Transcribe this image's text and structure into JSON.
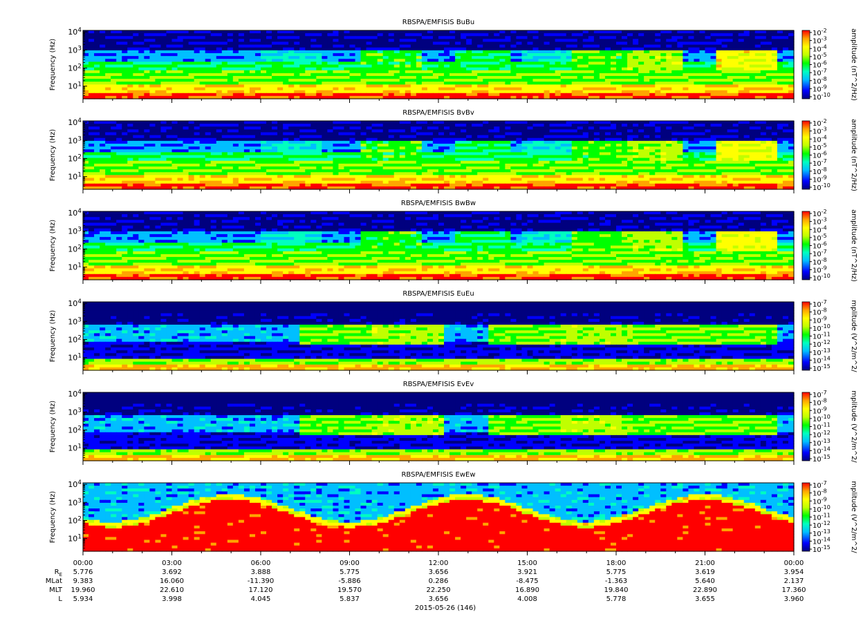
{
  "chart_data": {
    "type": "heatmap",
    "panels": [
      {
        "title": "RBSPA/EMFISIS  BuBu",
        "ylabel": "Frequency (Hz)",
        "colorbar_label": "amplitude (nT^2/Hz)",
        "ylim": [
          2,
          12000
        ],
        "yscale": "log",
        "ytick_labels": [
          "10",
          "10",
          "10",
          "10"
        ],
        "ytick_exponents": [
          "1",
          "2",
          "3",
          "4"
        ],
        "colorbar_tick_labels": [
          "10",
          "10",
          "10",
          "10",
          "10",
          "10",
          "10",
          "10",
          "10"
        ],
        "colorbar_tick_exponents": [
          "-2",
          "-3",
          "-4",
          "-5",
          "-6",
          "-7",
          "-8",
          "-9",
          "-10"
        ],
        "field": "B"
      },
      {
        "title": "RBSPA/EMFISIS  BvBv",
        "ylabel": "Frequency (Hz)",
        "colorbar_label": "amplitude (nT^2/Hz)",
        "ylim": [
          2,
          12000
        ],
        "yscale": "log",
        "ytick_labels": [
          "10",
          "10",
          "10",
          "10"
        ],
        "ytick_exponents": [
          "1",
          "2",
          "3",
          "4"
        ],
        "colorbar_tick_labels": [
          "10",
          "10",
          "10",
          "10",
          "10",
          "10",
          "10",
          "10",
          "10"
        ],
        "colorbar_tick_exponents": [
          "-2",
          "-3",
          "-4",
          "-5",
          "-6",
          "-7",
          "-8",
          "-9",
          "-10"
        ],
        "field": "B"
      },
      {
        "title": "RBSPA/EMFISIS  BwBw",
        "ylabel": "Frequency (Hz)",
        "colorbar_label": "amplitude (nT^2/Hz)",
        "ylim": [
          2,
          12000
        ],
        "yscale": "log",
        "ytick_labels": [
          "10",
          "10",
          "10",
          "10"
        ],
        "ytick_exponents": [
          "1",
          "2",
          "3",
          "4"
        ],
        "colorbar_tick_labels": [
          "10",
          "10",
          "10",
          "10",
          "10",
          "10",
          "10",
          "10",
          "10"
        ],
        "colorbar_tick_exponents": [
          "-2",
          "-3",
          "-4",
          "-5",
          "-6",
          "-7",
          "-8",
          "-9",
          "-10"
        ],
        "field": "B"
      },
      {
        "title": "RBSPA/EMFISIS  EuEu",
        "ylabel": "Frequency (Hz)",
        "colorbar_label": "mplitude (V^2/m^2/",
        "ylim": [
          2,
          12000
        ],
        "yscale": "log",
        "ytick_labels": [
          "10",
          "10",
          "10",
          "10"
        ],
        "ytick_exponents": [
          "1",
          "2",
          "3",
          "4"
        ],
        "colorbar_tick_labels": [
          "10",
          "10",
          "10",
          "10",
          "10",
          "10",
          "10",
          "10",
          "10"
        ],
        "colorbar_tick_exponents": [
          "-7",
          "-8",
          "-9",
          "-10",
          "-11",
          "-12",
          "-13",
          "-14",
          "-15"
        ],
        "field": "E"
      },
      {
        "title": "RBSPA/EMFISIS  EvEv",
        "ylabel": "Frequency (Hz)",
        "colorbar_label": "mplitude (V^2/m^2/",
        "ylim": [
          2,
          12000
        ],
        "yscale": "log",
        "ytick_labels": [
          "10",
          "10",
          "10",
          "10"
        ],
        "ytick_exponents": [
          "1",
          "2",
          "3",
          "4"
        ],
        "colorbar_tick_labels": [
          "10",
          "10",
          "10",
          "10",
          "10",
          "10",
          "10",
          "10",
          "10"
        ],
        "colorbar_tick_exponents": [
          "-7",
          "-8",
          "-9",
          "-10",
          "-11",
          "-12",
          "-13",
          "-14",
          "-15"
        ],
        "field": "E"
      },
      {
        "title": "RBSPA/EMFISIS  EwEw",
        "ylabel": "Frequency (Hz)",
        "colorbar_label": "mplitude (V^2/m^2/",
        "ylim": [
          2,
          12000
        ],
        "yscale": "log",
        "ytick_labels": [
          "10",
          "10",
          "10",
          "10"
        ],
        "ytick_exponents": [
          "1",
          "2",
          "3",
          "4"
        ],
        "colorbar_tick_labels": [
          "10",
          "10",
          "10",
          "10",
          "10",
          "10",
          "10",
          "10",
          "10"
        ],
        "colorbar_tick_exponents": [
          "-7",
          "-8",
          "-9",
          "-10",
          "-11",
          "-12",
          "-13",
          "-14",
          "-15"
        ],
        "field": "Ew"
      }
    ],
    "x_tick_labels": [
      "00:00",
      "03:00",
      "06:00",
      "09:00",
      "12:00",
      "15:00",
      "18:00",
      "21:00",
      "00:00"
    ],
    "ephemeris": {
      "row_labels": [
        "R",
        "MLat",
        "MLT",
        "L"
      ],
      "re_subscript": "E",
      "rows": [
        [
          "5.776",
          "3.692",
          "3.888",
          "5.775",
          "3.656",
          "3.921",
          "5.775",
          "3.619",
          "3.954"
        ],
        [
          "9.383",
          "16.060",
          "-11.390",
          "-5.886",
          "0.286",
          "-8.475",
          "-1.363",
          "5.640",
          "2.137"
        ],
        [
          "19.960",
          "22.610",
          "17.120",
          "19.570",
          "22.250",
          "16.890",
          "19.840",
          "22.890",
          "17.360"
        ],
        [
          "5.934",
          "3.998",
          "4.045",
          "5.837",
          "3.656",
          "4.008",
          "5.778",
          "3.655",
          "3.960"
        ]
      ]
    },
    "date_label": "2015-05-26 (146)",
    "colormap": [
      "#00007f",
      "#0000ff",
      "#00bfff",
      "#00ffc0",
      "#00ff00",
      "#c0ff00",
      "#ffff00",
      "#ffa500",
      "#ff0000"
    ]
  }
}
